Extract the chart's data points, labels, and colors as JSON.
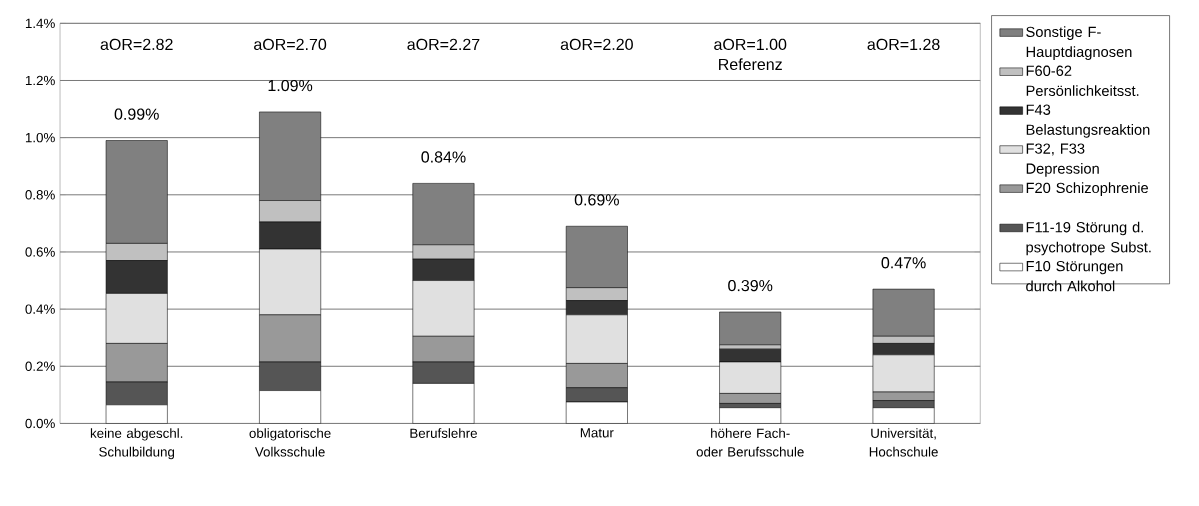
{
  "chart_data": {
    "type": "bar",
    "stacked": true,
    "categories": [
      "keine abgeschl. Schulbildung",
      "obligatorische Volksschule",
      "Berufslehre",
      "Matur",
      "höhere Fach- oder Berufsschule",
      "Universität, Hochschule"
    ],
    "series": [
      {
        "name": "F10 Störungen durch Alkohol",
        "color": "#ffffff",
        "values": [
          0.065,
          0.115,
          0.14,
          0.075,
          0.055,
          0.055
        ]
      },
      {
        "name": "F11-19 Störung d. psychotrope Subst.",
        "color": "#555555",
        "values": [
          0.08,
          0.1,
          0.075,
          0.05,
          0.015,
          0.025
        ]
      },
      {
        "name": "F20 Schizophrenie",
        "color": "#999999",
        "values": [
          0.135,
          0.165,
          0.09,
          0.085,
          0.035,
          0.03
        ]
      },
      {
        "name": "F32, F33 Depression",
        "color": "#e0e0e0",
        "values": [
          0.175,
          0.23,
          0.195,
          0.17,
          0.11,
          0.13
        ]
      },
      {
        "name": "F43 Belastungsreaktion",
        "color": "#333333",
        "values": [
          0.115,
          0.095,
          0.075,
          0.05,
          0.045,
          0.04
        ]
      },
      {
        "name": "F60-62 Persönlichkeitsst.",
        "color": "#c0c0c0",
        "values": [
          0.06,
          0.075,
          0.05,
          0.045,
          0.015,
          0.025
        ]
      },
      {
        "name": "Sonstige F-Hauptdiagnosen",
        "color": "#808080",
        "values": [
          0.36,
          0.31,
          0.215,
          0.215,
          0.115,
          0.165
        ]
      }
    ],
    "totals": [
      "0.99%",
      "1.09%",
      "0.84%",
      "0.69%",
      "0.39%",
      "0.47%"
    ],
    "annotations": [
      "aOR=2.82",
      "aOR=2.70",
      "aOR=2.27",
      "aOR=2.20",
      "aOR=1.00 Referenz",
      "aOR=1.28"
    ],
    "ylim": [
      0,
      1.4
    ],
    "yticks": [
      {
        "value": 0,
        "label": "0.0%"
      },
      {
        "value": 0.2,
        "label": "0.2%"
      },
      {
        "value": 0.4,
        "label": "0.4%"
      },
      {
        "value": 0.6,
        "label": "0.6%"
      },
      {
        "value": 0.8,
        "label": "0.8%"
      },
      {
        "value": 1.0,
        "label": "1.0%"
      },
      {
        "value": 1.2,
        "label": "1.2%"
      },
      {
        "value": 1.4,
        "label": "1.4%"
      }
    ],
    "grid": "y",
    "legend": "right"
  }
}
